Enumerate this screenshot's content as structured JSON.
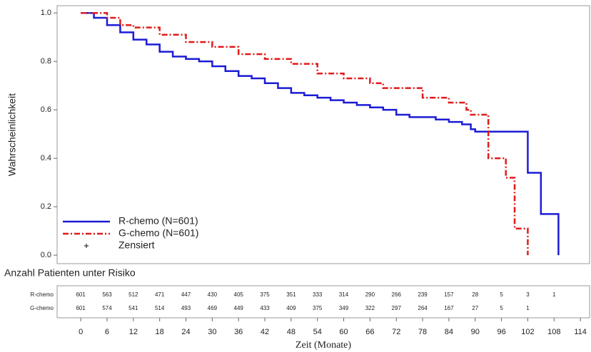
{
  "chart_data": {
    "type": "line",
    "step": true,
    "y_label": "Wahrscheinlichkeit",
    "x_label": "Zeit (Monate)",
    "xlim": [
      -5.4,
      116.1
    ],
    "ylim": [
      -0.035,
      1.03
    ],
    "xticks": [
      0,
      6,
      12,
      18,
      24,
      30,
      36,
      42,
      48,
      54,
      60,
      66,
      72,
      78,
      84,
      90,
      96,
      102,
      108,
      114
    ],
    "yticks": [
      {
        "value": 0,
        "label": "0.0"
      },
      0.2,
      0.4,
      0.6,
      0.8,
      {
        "value": 1,
        "label": "1.0"
      }
    ],
    "legend_position": "lower left",
    "censor_label": "Zensiert",
    "series": [
      {
        "name": "R-chemo (N=601)",
        "color": "#1c1cd6",
        "dash": "solid",
        "x": [
          0,
          3,
          6,
          9,
          12,
          15,
          18,
          21,
          24,
          27,
          30,
          33,
          36,
          39,
          42,
          45,
          48,
          51,
          54,
          57,
          60,
          63,
          66,
          69,
          72,
          75,
          81,
          84,
          87,
          89,
          90,
          102,
          105,
          109
        ],
        "values": [
          1.0,
          0.98,
          0.95,
          0.92,
          0.89,
          0.87,
          0.84,
          0.82,
          0.81,
          0.8,
          0.78,
          0.76,
          0.74,
          0.73,
          0.71,
          0.69,
          0.67,
          0.66,
          0.65,
          0.64,
          0.63,
          0.62,
          0.61,
          0.6,
          0.58,
          0.57,
          0.56,
          0.55,
          0.54,
          0.52,
          0.51,
          0.34,
          0.17,
          0.0
        ]
      },
      {
        "name": "G-chemo (N=601)",
        "color": "#e01a1a",
        "dash": "dashdot",
        "x": [
          0,
          6,
          9,
          12,
          18,
          24,
          30,
          36,
          42,
          48,
          54,
          60,
          66,
          69,
          78,
          84,
          88,
          89,
          93,
          97,
          99,
          102
        ],
        "values": [
          1.0,
          0.98,
          0.95,
          0.94,
          0.91,
          0.88,
          0.86,
          0.83,
          0.81,
          0.79,
          0.75,
          0.73,
          0.71,
          0.69,
          0.65,
          0.63,
          0.6,
          0.58,
          0.4,
          0.32,
          0.11,
          0.0
        ]
      }
    ],
    "risk_table": {
      "title": "Anzahl Patienten unter Risiko",
      "rows": [
        {
          "label": "R-chemo",
          "values": [
            601,
            563,
            512,
            471,
            447,
            430,
            405,
            375,
            351,
            333,
            314,
            290,
            266,
            239,
            157,
            28,
            5,
            3,
            1
          ]
        },
        {
          "label": "G-chemo",
          "values": [
            601,
            574,
            541,
            514,
            493,
            469,
            449,
            433,
            409,
            375,
            349,
            322,
            297,
            264,
            167,
            27,
            5,
            1
          ]
        }
      ]
    }
  }
}
